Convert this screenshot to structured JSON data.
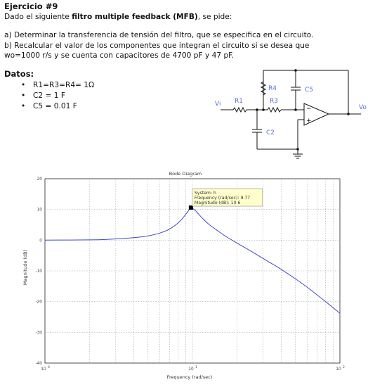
{
  "exercise": {
    "title": "Ejercicio #9",
    "intro_prefix": "Dado el siguiente ",
    "intro_bold": "filtro multiple feedback (MFB)",
    "intro_suffix": ", se pide:",
    "item_a": "a) Determinar la transferencia de tensión del filtro, que se especifica en el circuito.",
    "item_b_line1": "b) Recalcular el valor de los componentes que integran el circuito si se desea que",
    "item_b_line2": "wo=1000 r/s y se cuenta con capacitores de 4700 pF y 47 pF.",
    "datos_title": "Datos:",
    "bullet_symbol": "•",
    "datos": [
      "R1=R3=R4= 1Ω",
      "C2 = 1 F",
      "C5 = 0.01 F"
    ]
  },
  "circuit": {
    "labels": {
      "vi": "Vi",
      "r1": "R1",
      "r3": "R3",
      "r4": "R4",
      "c2": "C2",
      "c5": "C5",
      "vo": "Vo",
      "minus": "−",
      "plus": "+"
    },
    "label_color": "#5a6fd8",
    "wire_color": "#111111"
  },
  "chart_data": {
    "type": "line",
    "title": "Bode Diagram",
    "xlabel": "Frequency (rad/sec)",
    "ylabel": "Magnitude (dB)",
    "x_scale": "log",
    "xlim": [
      1,
      100
    ],
    "ylim": [
      -40,
      20
    ],
    "y_ticks": [
      20,
      10,
      0,
      -10,
      -20,
      -30,
      -40
    ],
    "x_tick_labels": [
      {
        "value": 1,
        "base": "10",
        "exp": "0"
      },
      {
        "value": 10,
        "base": "10",
        "exp": "1"
      },
      {
        "value": 100,
        "base": "10",
        "exp": "2"
      }
    ],
    "grid": true,
    "line_color": "#3f48cc",
    "series": [
      {
        "x": [
          1,
          1.5,
          2,
          2.5,
          3,
          4,
          5,
          6,
          7,
          8,
          8.5,
          9,
          9.5,
          9.77,
          10,
          10.5,
          11,
          12,
          13,
          15,
          17,
          20,
          25,
          30,
          40,
          50,
          60,
          70,
          80,
          90,
          100
        ],
        "y": [
          0.02,
          0.05,
          0.1,
          0.2,
          0.4,
          0.8,
          1.4,
          2.3,
          3.6,
          5.6,
          6.9,
          8.4,
          9.9,
          10.6,
          10.4,
          9.6,
          8.5,
          6.6,
          5.1,
          2.9,
          1.1,
          -0.9,
          -3.6,
          -5.9,
          -9.5,
          -12.6,
          -15.3,
          -17.8,
          -20.0,
          -22.0,
          -23.8
        ]
      }
    ],
    "datatip": {
      "x": 9.77,
      "y": 10.6,
      "line1": "System: h",
      "line2": "Frequency (rad/sec): 9.77",
      "line3": "Magnitude (dB): 10.6"
    }
  }
}
